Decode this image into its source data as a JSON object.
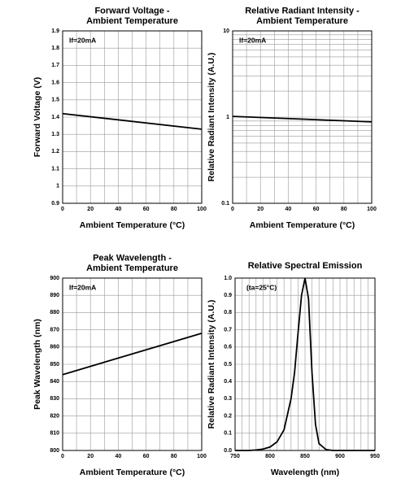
{
  "chart_data": [
    {
      "type": "line",
      "title": [
        "Forward Voltage -",
        "Ambient Temperature"
      ],
      "xlabel": "Ambient Temperature (°C)",
      "ylabel": "Forward Voltage (V)",
      "annotation": "If=20mA",
      "xlim": [
        0,
        100
      ],
      "xticks": [
        0,
        20,
        40,
        60,
        80,
        100
      ],
      "ylim": [
        0.9,
        1.9
      ],
      "yticks": [
        0.9,
        1.0,
        1.1,
        1.2,
        1.3,
        1.4,
        1.5,
        1.6,
        1.7,
        1.8,
        1.9
      ],
      "grid": true,
      "series": [
        {
          "color": "#000000",
          "x": [
            0,
            100
          ],
          "values": [
            1.42,
            1.33
          ]
        }
      ]
    },
    {
      "type": "line",
      "title": [
        "Relative Radiant Intensity -",
        "Ambient Temperature"
      ],
      "xlabel": "Ambient Temperature (°C)",
      "ylabel": "Relative Radiant Intensity (A.U.)",
      "annotation": "If=20mA",
      "xlim": [
        0,
        100
      ],
      "xticks": [
        0,
        20,
        40,
        60,
        80,
        100
      ],
      "ylim": [
        0.1,
        10
      ],
      "yticks": [
        0.1,
        1,
        10
      ],
      "log_y": true,
      "grid": true,
      "series": [
        {
          "color": "#000000",
          "x": [
            0,
            100
          ],
          "values": [
            1.02,
            0.88
          ]
        }
      ]
    },
    {
      "type": "line",
      "title": [
        "Peak Wavelength -",
        "Ambient Temperature"
      ],
      "xlabel": "Ambient Temperature (°C)",
      "ylabel": "Peak Wavelength (nm)",
      "annotation": "If=20mA",
      "xlim": [
        0,
        100
      ],
      "xticks": [
        0,
        20,
        40,
        60,
        80,
        100
      ],
      "ylim": [
        800,
        900
      ],
      "yticks": [
        800,
        810,
        820,
        830,
        840,
        850,
        860,
        870,
        880,
        890,
        900
      ],
      "grid": true,
      "series": [
        {
          "color": "#000000",
          "x": [
            0,
            100
          ],
          "values": [
            844,
            868
          ]
        }
      ]
    },
    {
      "type": "line",
      "title": [
        "Relative Spectral Emission"
      ],
      "xlabel": "Wavelength (nm)",
      "ylabel": "Relative Radiant Intensity (A.U.)",
      "annotation": "(ta=25°C)",
      "xlim": [
        750,
        950
      ],
      "xticks": [
        750,
        800,
        850,
        900,
        950
      ],
      "ylim": [
        0,
        1
      ],
      "yticks": [
        {
          "value": 0,
          "label": "0.0"
        },
        0.1,
        0.2,
        0.3,
        0.4,
        0.5,
        0.6,
        0.7,
        0.8,
        0.9,
        {
          "value": 1,
          "label": "1.0"
        }
      ],
      "grid": true,
      "series": [
        {
          "color": "#000000",
          "x": [
            750,
            770,
            780,
            790,
            800,
            810,
            820,
            830,
            835,
            840,
            845,
            850,
            855,
            860,
            865,
            870,
            880,
            890,
            950
          ],
          "values": [
            0,
            0,
            0.003,
            0.008,
            0.02,
            0.05,
            0.12,
            0.3,
            0.45,
            0.68,
            0.9,
            1.0,
            0.88,
            0.45,
            0.15,
            0.04,
            0.005,
            0,
            0
          ]
        }
      ]
    }
  ]
}
